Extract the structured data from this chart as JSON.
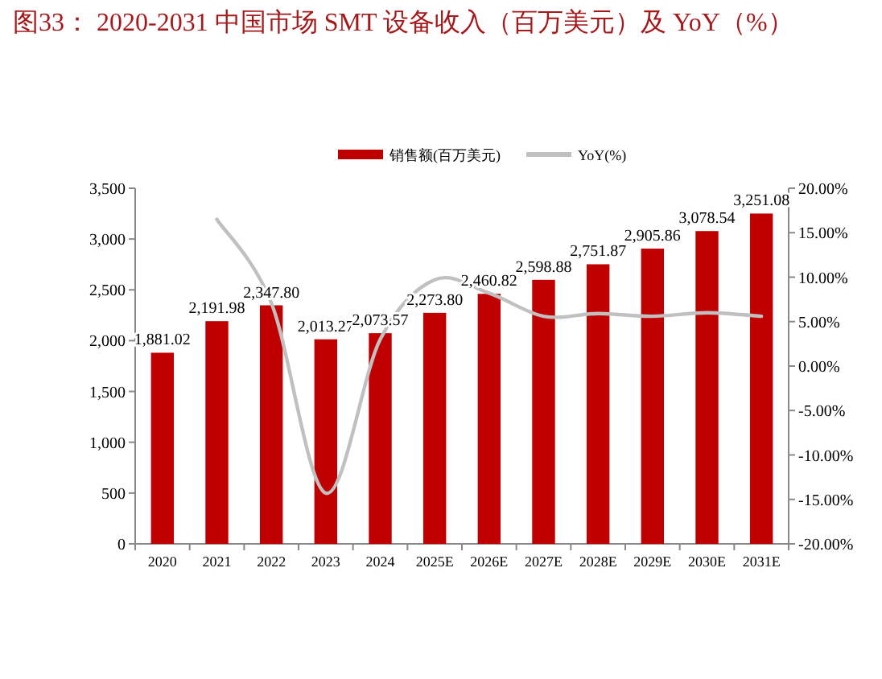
{
  "chart_data": {
    "type": "bar",
    "title": "图33：  2020-2031 中国市场 SMT 设备收入（百万美元）及 YoY（%）",
    "categories": [
      "2020",
      "2021",
      "2022",
      "2023",
      "2024",
      "2025E",
      "2026E",
      "2027E",
      "2028E",
      "2029E",
      "2030E",
      "2031E"
    ],
    "series": [
      {
        "name": "销售额(百万美元)",
        "color": "#c00000",
        "values": [
          1881.02,
          2191.98,
          2347.8,
          2013.27,
          2073.57,
          2273.8,
          2460.82,
          2598.88,
          2751.87,
          2905.86,
          3078.54,
          3251.08
        ],
        "value_labels": [
          "1,881.02",
          "2,191.98",
          "2,347.80",
          "2,013.27",
          "2,073.57",
          "2,273.80",
          "2,460.82",
          "2,598.88",
          "2,751.87",
          "2,905.86",
          "3,078.54",
          "3,251.08"
        ]
      },
      {
        "name": "YoY(%)",
        "type": "line",
        "axis": "y2",
        "color": "#c0c0c0",
        "values": [
          null,
          16.5,
          7.1,
          -14.3,
          3.0,
          9.7,
          8.2,
          5.6,
          5.9,
          5.6,
          6.0,
          5.6
        ]
      }
    ],
    "ylim": [
      0,
      3500
    ],
    "yticks": [
      0,
      {
        "value": 500,
        "label": "500"
      },
      {
        "value": 1000,
        "label": "1,000"
      },
      {
        "value": 1500,
        "label": "1,500"
      },
      {
        "value": 2000,
        "label": "2,000"
      },
      {
        "value": 2500,
        "label": "2,500"
      },
      {
        "value": 3000,
        "label": "3,000"
      },
      {
        "value": 3500,
        "label": "3,500"
      }
    ],
    "y2lim": [
      -20,
      20
    ],
    "y2ticks": [
      {
        "value": -20,
        "label": "-20.00%"
      },
      {
        "value": -15,
        "label": "-15.00%"
      },
      {
        "value": -10,
        "label": "-10.00%"
      },
      {
        "value": -5,
        "label": "-5.00%"
      },
      {
        "value": 0,
        "label": "0.00%"
      },
      {
        "value": 5,
        "label": "5.00%"
      },
      {
        "value": 10,
        "label": "10.00%"
      },
      {
        "value": 15,
        "label": "15.00%"
      },
      {
        "value": 20,
        "label": "20.00%"
      }
    ],
    "legend": "top",
    "grid": false
  }
}
